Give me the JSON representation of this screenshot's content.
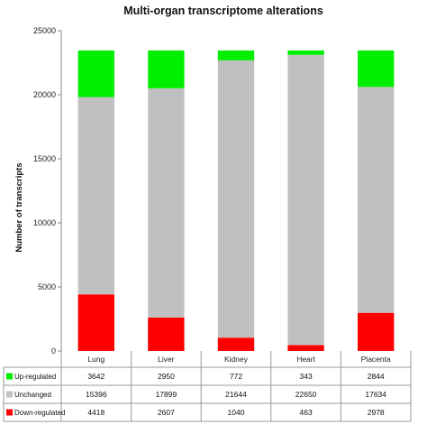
{
  "chart_data": {
    "type": "bar",
    "stacked": true,
    "title": "Multi-organ transcriptome alterations",
    "xlabel": "",
    "ylabel": "Number of transcripts",
    "ylim": [
      0,
      25000
    ],
    "yticks": [
      0,
      5000,
      10000,
      15000,
      20000,
      25000
    ],
    "grid": false,
    "legend": "left of data table",
    "categories": [
      "Lung",
      "Liver",
      "Kidney",
      "Heart",
      "Placenta"
    ],
    "series": [
      {
        "name": "Down-regulated",
        "color": "#ff0000",
        "values": [
          4418,
          2607,
          1040,
          463,
          2978
        ]
      },
      {
        "name": "Unchanged",
        "color": "#c0c0c0",
        "values": [
          15396,
          17899,
          21644,
          22650,
          17634
        ]
      },
      {
        "name": "Up-regulated",
        "color": "#00ee00",
        "values": [
          3642,
          2950,
          772,
          343,
          2844
        ]
      }
    ],
    "table_rows": [
      {
        "name": "Up-regulated",
        "color": "#00ee00",
        "cells": [
          "3642",
          "2950",
          "772",
          "343",
          "2844"
        ]
      },
      {
        "name": "Unchanged",
        "color": "#c0c0c0",
        "cells": [
          "15396",
          "17899",
          "21644",
          "22650",
          "17634"
        ]
      },
      {
        "name": "Down-regulated",
        "color": "#ff0000",
        "cells": [
          "4418",
          "2607",
          "1040",
          "463",
          "2978"
        ]
      }
    ]
  }
}
